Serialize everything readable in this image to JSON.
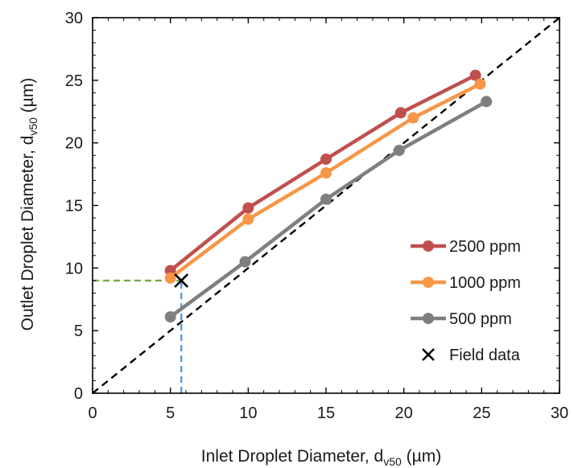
{
  "chart_data": {
    "type": "line",
    "xlabel": {
      "main": "Inlet Droplet Diameter, d",
      "sub": "v50",
      "unit": " (µm)"
    },
    "ylabel": {
      "main": "Outlet Droplet Diameter, d",
      "sub": "v50",
      "unit": " (µm)"
    },
    "xlim": [
      0,
      30
    ],
    "ylim": [
      0,
      30
    ],
    "x_ticks": [
      0,
      5,
      10,
      15,
      20,
      25,
      30
    ],
    "y_ticks": [
      0,
      5,
      10,
      15,
      20,
      25,
      30
    ],
    "x_tick_labels": [
      "0",
      "5",
      "10",
      "15",
      "20",
      "25",
      "30"
    ],
    "y_tick_labels": [
      "0",
      "5",
      "10",
      "15",
      "20",
      "25",
      "30"
    ],
    "grid": false,
    "legend_position": "right",
    "series": [
      {
        "name": "2500 ppm",
        "color": "#c0504d",
        "marker": "circle",
        "x": [
          5.0,
          10.0,
          15.0,
          19.8,
          24.6
        ],
        "y": [
          9.8,
          14.8,
          18.7,
          22.4,
          25.4
        ]
      },
      {
        "name": "1000 ppm",
        "color": "#f79646",
        "marker": "circle",
        "x": [
          5.0,
          10.0,
          15.0,
          20.6,
          24.9
        ],
        "y": [
          9.2,
          13.9,
          17.6,
          22.0,
          24.7
        ]
      },
      {
        "name": "500 ppm",
        "color": "#7f7f7f",
        "marker": "circle",
        "x": [
          5.0,
          9.8,
          15.0,
          19.7,
          25.3
        ],
        "y": [
          6.1,
          10.5,
          15.5,
          19.4,
          23.3
        ]
      },
      {
        "name": "Field data",
        "color": "#000000",
        "marker": "x",
        "x": [
          5.7
        ],
        "y": [
          9.0
        ]
      }
    ],
    "reference_line": {
      "style": "dashed",
      "color": "#000000",
      "from": [
        0,
        0
      ],
      "to": [
        30,
        30
      ]
    },
    "guide_lines": [
      {
        "color": "#70ad47",
        "style": "dashed",
        "from": [
          0,
          9.0
        ],
        "to": [
          5.7,
          9.0
        ]
      },
      {
        "color": "#5b9bd5",
        "style": "dashed",
        "from": [
          5.7,
          0
        ],
        "to": [
          5.7,
          9.0
        ]
      }
    ]
  }
}
